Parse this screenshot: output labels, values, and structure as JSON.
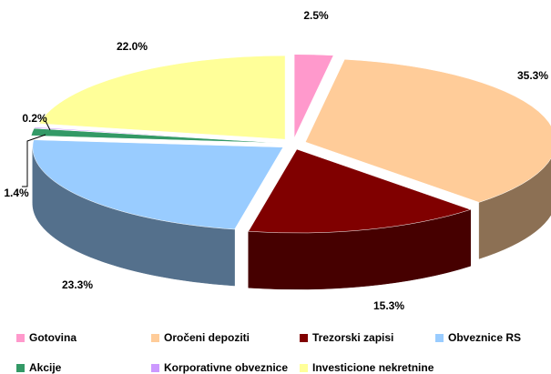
{
  "chart_data": {
    "type": "pie3d",
    "categories": [
      "Gotovina",
      "Oročeni depoziti",
      "Trezorski zapisi",
      "Obveznice RS",
      "Akcije",
      "Korporativne obveznice",
      "Investicione nekretnine"
    ],
    "values": [
      2.5,
      35.3,
      15.3,
      23.3,
      1.4,
      0.2,
      22.0
    ],
    "value_labels": [
      "2.5%",
      "35.3%",
      "15.3%",
      "23.3%",
      "1.4%",
      "0.2%",
      "22.0%"
    ],
    "colors": [
      "#ff99cc",
      "#ffcc99",
      "#800000",
      "#99ccff",
      "#339966",
      "#cc99ff",
      "#ffff99"
    ],
    "legend": "bottom"
  }
}
